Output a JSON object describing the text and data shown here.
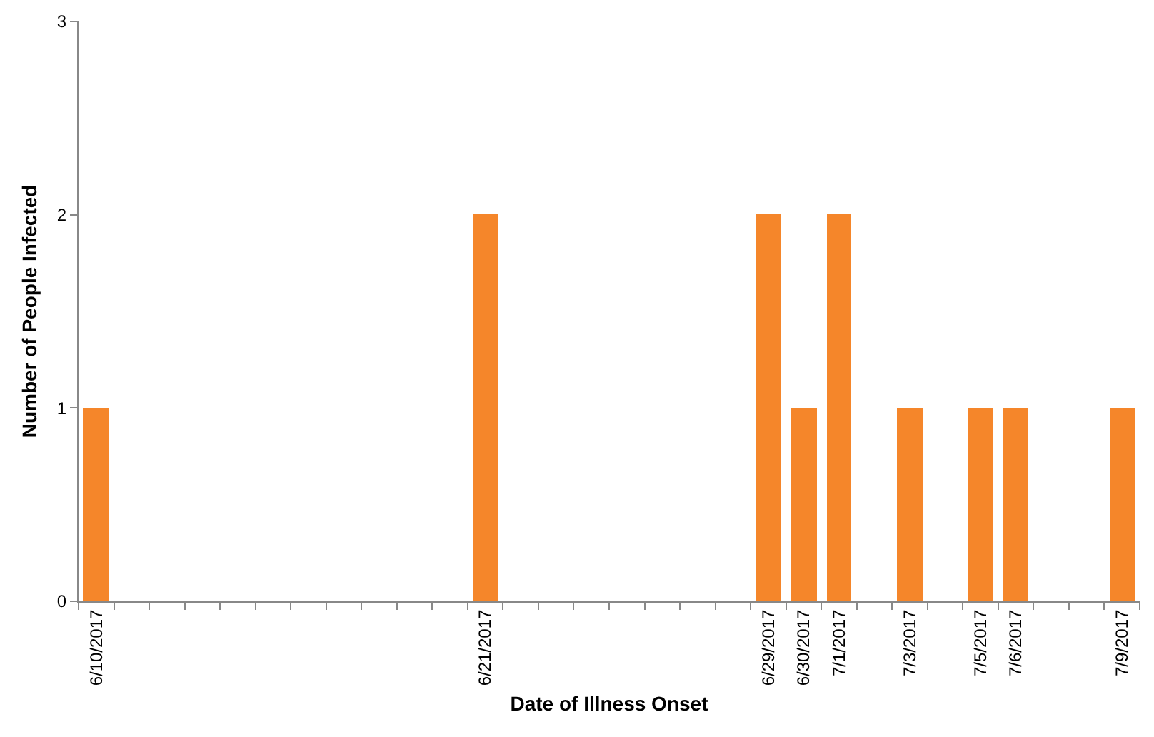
{
  "chart_data": {
    "type": "bar",
    "xlabel": "Date of Illness Onset",
    "ylabel": "Number of People Infected",
    "categories": [
      "6/10/2017",
      null,
      null,
      null,
      null,
      null,
      null,
      null,
      null,
      null,
      null,
      "6/21/2017",
      null,
      null,
      null,
      null,
      null,
      null,
      null,
      "6/29/2017",
      "6/30/2017",
      "7/1/2017",
      null,
      "7/3/2017",
      null,
      "7/5/2017",
      "7/6/2017",
      null,
      null,
      "7/9/2017"
    ],
    "values": [
      1,
      null,
      null,
      null,
      null,
      null,
      null,
      null,
      null,
      null,
      null,
      2,
      null,
      null,
      null,
      null,
      null,
      null,
      null,
      2,
      1,
      2,
      null,
      1,
      null,
      1,
      1,
      null,
      null,
      1
    ],
    "color": "#f5862a",
    "ylim": [
      0,
      3
    ],
    "yticks": [
      0,
      1,
      2,
      3
    ],
    "grid": false
  }
}
